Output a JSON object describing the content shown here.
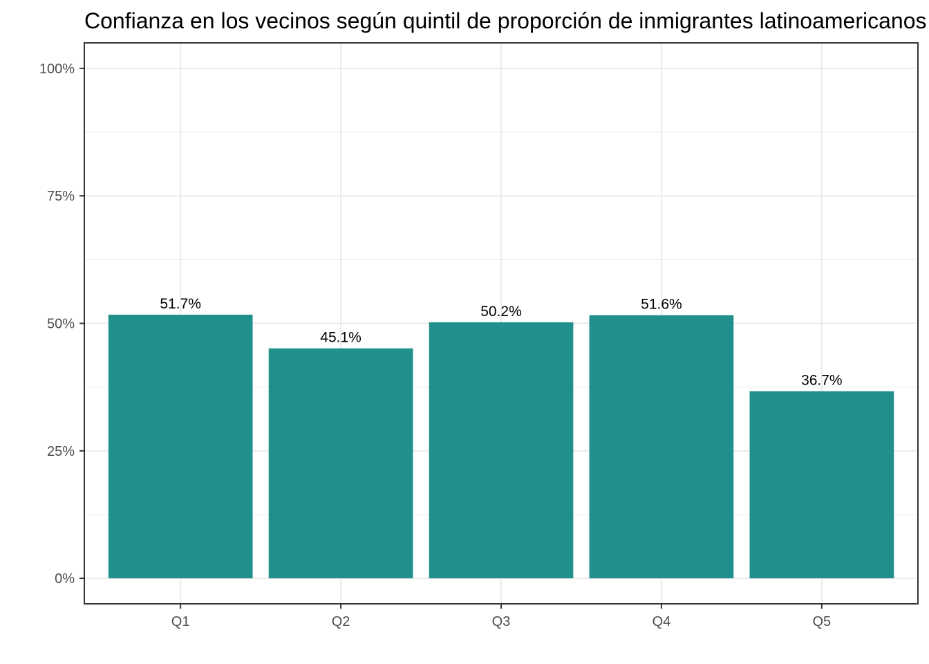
{
  "chart_data": {
    "type": "bar",
    "title": "Confianza en los vecinos según quintil de proporción de inmigrantes latinoamericanos",
    "xlabel": "",
    "ylabel": "",
    "categories": [
      "Q1",
      "Q2",
      "Q3",
      "Q4",
      "Q5"
    ],
    "values": [
      51.7,
      45.1,
      50.2,
      51.6,
      36.7
    ],
    "value_labels": [
      "51.7%",
      "45.1%",
      "50.2%",
      "51.6%",
      "36.7%"
    ],
    "y_ticks": [
      0,
      25,
      50,
      75,
      100
    ],
    "y_tick_labels": [
      "0%",
      "25%",
      "50%",
      "75%",
      "100%"
    ],
    "ylim": [
      -5,
      105
    ],
    "grid": true,
    "legend": "none",
    "colors": {
      "bar": "#21908C",
      "grid": "#ebebeb",
      "panel_border": "#333333",
      "tick": "#333333"
    }
  }
}
